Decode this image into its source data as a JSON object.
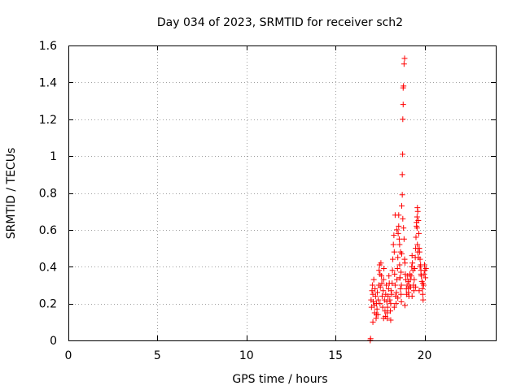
{
  "chart_data": {
    "type": "scatter",
    "title": "Day 034 of 2023, SRMTID for receiver sch2",
    "xlabel": "GPS time / hours",
    "ylabel": "SRMTID / TECUs",
    "xlim": [
      0,
      24
    ],
    "ylim": [
      0,
      1.6
    ],
    "xticks": [
      0,
      5,
      10,
      15,
      20
    ],
    "xtick_labels": [
      "0",
      "5",
      "10",
      "15",
      "20"
    ],
    "yticks": [
      0,
      0.2,
      0.4,
      0.6,
      0.8,
      1.0,
      1.2,
      1.4,
      1.6
    ],
    "ytick_labels": [
      "0",
      "0.2",
      "0.4",
      "0.6",
      "0.8",
      "1",
      "1.2",
      "1.4",
      "1.6"
    ],
    "grid": true,
    "marker": "+",
    "color": "#ff0000",
    "series": [
      {
        "name": "sch2",
        "x": [
          16.95,
          16.97,
          17.0,
          17.02,
          17.05,
          17.08,
          17.1,
          17.12,
          17.15,
          17.18,
          17.2,
          17.22,
          17.25,
          17.28,
          17.3,
          17.33,
          17.35,
          17.38,
          17.4,
          17.43,
          17.45,
          17.48,
          17.5,
          17.52,
          17.55,
          17.58,
          17.6,
          17.62,
          17.65,
          17.68,
          17.7,
          17.72,
          17.75,
          17.78,
          17.8,
          17.82,
          17.85,
          17.88,
          17.9,
          17.92,
          17.95,
          17.98,
          18.0,
          18.02,
          18.05,
          18.08,
          18.1,
          18.12,
          18.15,
          18.18,
          18.2,
          18.22,
          18.25,
          18.28,
          18.3,
          18.32,
          18.35,
          18.38,
          18.4,
          18.42,
          18.45,
          18.48,
          18.5,
          18.52,
          18.55,
          18.58,
          18.6,
          18.62,
          18.65,
          18.68,
          18.7,
          18.72,
          18.75,
          18.77,
          18.78,
          18.8,
          18.8,
          18.82,
          18.85,
          18.88,
          18.9,
          18.92,
          18.95,
          18.98,
          19.0,
          19.02,
          19.05,
          19.08,
          19.1,
          19.12,
          19.15,
          19.18,
          19.2,
          19.22,
          19.25,
          19.28,
          19.3,
          19.32,
          19.35,
          19.38,
          19.4,
          19.42,
          19.45,
          19.48,
          19.5,
          19.52,
          19.55,
          19.58,
          19.6,
          19.62,
          19.65,
          19.68,
          19.7,
          19.72,
          19.75,
          19.78,
          19.8,
          19.82,
          19.85,
          19.88,
          19.9,
          19.92,
          19.95,
          19.98,
          20.0,
          20.02,
          20.05,
          20.08,
          17.1,
          17.3,
          17.5,
          17.7,
          17.9,
          18.1,
          18.3,
          18.5,
          18.7,
          18.9,
          19.1,
          19.3,
          19.5,
          19.7,
          19.9,
          18.35,
          18.45,
          18.6,
          18.65,
          18.75,
          18.72,
          18.78,
          18.82,
          18.85,
          18.88,
          19.55,
          19.6,
          19.62,
          19.65,
          19.58,
          19.7,
          19.75,
          19.8,
          18.55,
          18.62,
          18.68
        ],
        "y": [
          0.0,
          0.01,
          0.22,
          0.18,
          0.27,
          0.3,
          0.25,
          0.21,
          0.33,
          0.19,
          0.15,
          0.28,
          0.24,
          0.12,
          0.2,
          0.17,
          0.26,
          0.14,
          0.22,
          0.3,
          0.38,
          0.41,
          0.36,
          0.29,
          0.42,
          0.35,
          0.31,
          0.24,
          0.18,
          0.27,
          0.33,
          0.39,
          0.22,
          0.16,
          0.13,
          0.25,
          0.3,
          0.21,
          0.12,
          0.18,
          0.24,
          0.28,
          0.35,
          0.31,
          0.22,
          0.16,
          0.2,
          0.27,
          0.25,
          0.31,
          0.38,
          0.44,
          0.52,
          0.57,
          0.48,
          0.36,
          0.3,
          0.24,
          0.2,
          0.26,
          0.33,
          0.39,
          0.45,
          0.58,
          0.62,
          0.55,
          0.41,
          0.34,
          0.28,
          0.25,
          0.3,
          0.47,
          0.9,
          1.01,
          1.2,
          1.28,
          1.37,
          1.38,
          1.5,
          1.53,
          0.42,
          0.36,
          0.33,
          0.28,
          0.25,
          0.3,
          0.35,
          0.32,
          0.28,
          0.24,
          0.3,
          0.36,
          0.33,
          0.29,
          0.35,
          0.4,
          0.46,
          0.42,
          0.38,
          0.3,
          0.27,
          0.33,
          0.39,
          0.45,
          0.5,
          0.56,
          0.62,
          0.67,
          0.72,
          0.7,
          0.65,
          0.58,
          0.5,
          0.48,
          0.44,
          0.41,
          0.38,
          0.35,
          0.32,
          0.28,
          0.25,
          0.22,
          0.3,
          0.36,
          0.41,
          0.38,
          0.34,
          0.39,
          0.1,
          0.14,
          0.2,
          0.12,
          0.15,
          0.11,
          0.18,
          0.23,
          0.21,
          0.19,
          0.26,
          0.24,
          0.29,
          0.27,
          0.31,
          0.68,
          0.6,
          0.52,
          0.48,
          0.79,
          0.73,
          0.66,
          0.61,
          0.55,
          0.44,
          0.64,
          0.52,
          0.48,
          0.45,
          0.61,
          0.5,
          0.4,
          0.36,
          0.68,
          0.34,
          0.37
        ]
      }
    ]
  }
}
